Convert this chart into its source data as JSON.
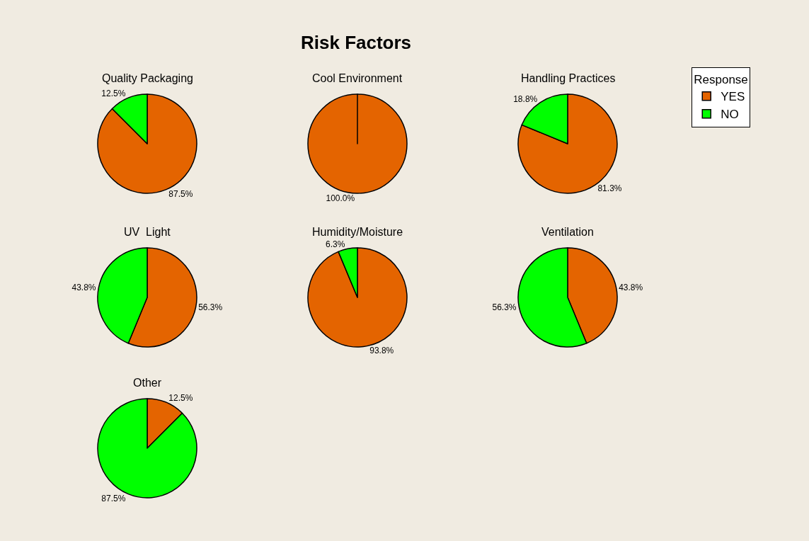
{
  "chart_data": {
    "type": "pie",
    "title": "Risk Factors",
    "legend_title": "Response",
    "legend": "top right",
    "categories": [
      "YES",
      "NO"
    ],
    "colors": [
      "#e46400",
      "#00ff00"
    ],
    "series": [
      {
        "name": "Quality Packaging",
        "values": [
          87.5,
          12.5
        ],
        "value_labels": [
          "87.5%",
          "12.5%"
        ]
      },
      {
        "name": "Cool Environment",
        "values": [
          100,
          0
        ],
        "value_labels": [
          "100.0%",
          null
        ]
      },
      {
        "name": "Handling Practices",
        "values": [
          81.3,
          18.8
        ],
        "value_labels": [
          "81.3%",
          "18.8%"
        ]
      },
      {
        "name": "UV  Light",
        "values": [
          56.3,
          43.8
        ],
        "value_labels": [
          "56.3%",
          "43.8%"
        ]
      },
      {
        "name": "Humidity/Moisture",
        "values": [
          93.8,
          6.3
        ],
        "value_labels": [
          "93.8%",
          "6.3%"
        ]
      },
      {
        "name": "Ventilation",
        "values": [
          43.8,
          56.3
        ],
        "value_labels": [
          "43.8%",
          "56.3%"
        ]
      },
      {
        "name": "Other",
        "values": [
          12.5,
          87.5
        ],
        "value_labels": [
          "12.5%",
          "87.5%"
        ]
      }
    ]
  }
}
